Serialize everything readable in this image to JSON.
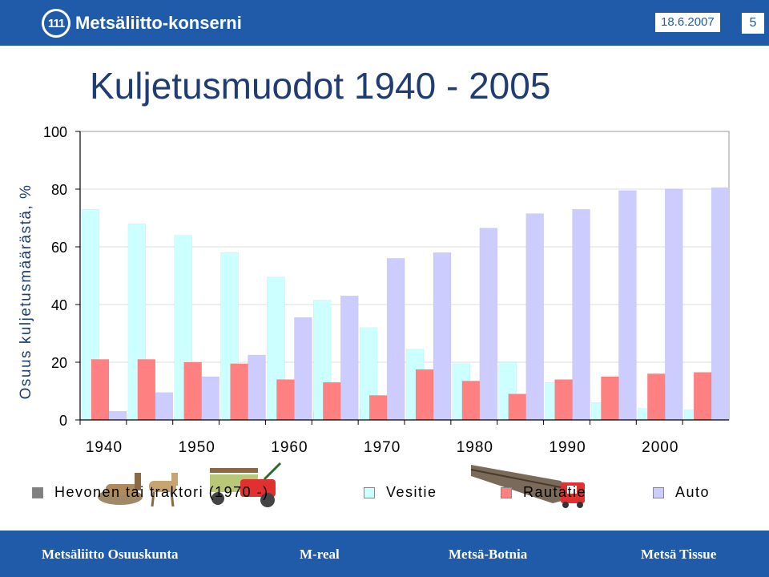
{
  "header": {
    "logo_mark": "111",
    "logo_text": "Metsäliitto-konserni",
    "date": "18.6.2007",
    "slide_number": "5"
  },
  "title": "Kuljetusmuodot 1940 - 2005",
  "chart_data": {
    "type": "bar",
    "ylabel": "Osuus kuljetusmäärästä, %",
    "xlabel": "",
    "ylim": [
      0,
      100
    ],
    "yticks": [
      0,
      20,
      40,
      60,
      80,
      100
    ],
    "x_tick_labels": [
      "1940",
      "1950",
      "1960",
      "1970",
      "1980",
      "1990",
      "2000"
    ],
    "categories": [
      "1940",
      "1945",
      "1950",
      "1955",
      "1960",
      "1965",
      "1970",
      "1975",
      "1980",
      "1985",
      "1990",
      "1995",
      "2000",
      "2005"
    ],
    "series": [
      {
        "name": "Hevonen tai traktori (1970 -)",
        "color": "#808080",
        "values": [
          3,
          2,
          1,
          0.5,
          0.5,
          3,
          4,
          0.5,
          0.5,
          0,
          0,
          0,
          0,
          0
        ]
      },
      {
        "name": "Vesitie",
        "color": "#ccffff",
        "values": [
          73,
          68,
          64,
          58,
          49.5,
          41.5,
          32,
          24.5,
          19.5,
          20,
          13,
          6,
          4,
          3.5
        ]
      },
      {
        "name": "Rautatie",
        "color": "#ff8080",
        "values": [
          21,
          21,
          20,
          19.5,
          14,
          13,
          8.5,
          17.5,
          13.5,
          9,
          14,
          15,
          16,
          16.5
        ]
      },
      {
        "name": "Auto",
        "color": "#ccccff",
        "values": [
          3,
          9.5,
          15,
          22.5,
          35.5,
          43,
          56,
          58,
          66.5,
          71.5,
          73,
          79.5,
          80,
          80.5
        ]
      }
    ],
    "grid": "horizontal",
    "legend_position": "bottom"
  },
  "legend": [
    {
      "label": "Hevonen tai traktori (1970 -)",
      "color": "#808080"
    },
    {
      "label": "Vesitie",
      "color": "#ccffff"
    },
    {
      "label": "Rautatie",
      "color": "#ff8080"
    },
    {
      "label": "Auto",
      "color": "#ccccff"
    }
  ],
  "footer": {
    "brands": [
      "Metsäliitto Osuuskunta",
      "M-real",
      "Metsä-Botnia",
      "Metsä Tissue"
    ]
  }
}
